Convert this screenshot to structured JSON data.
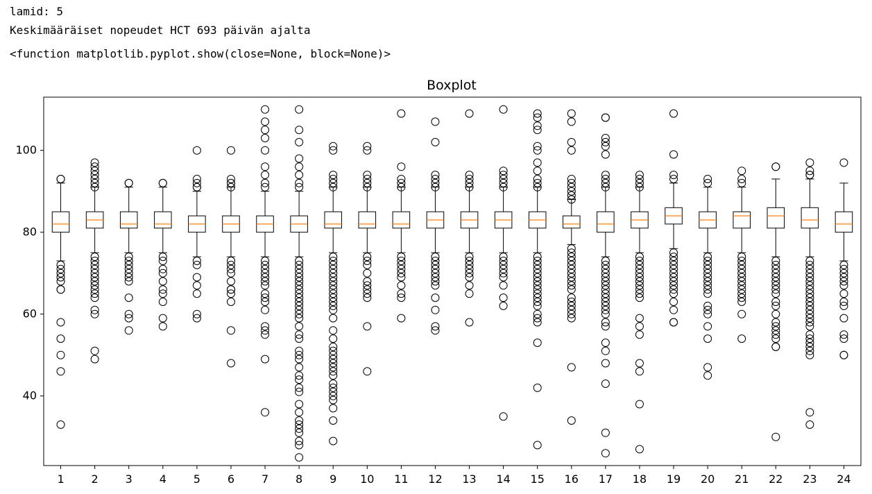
{
  "output": {
    "line1": "lamid: 5",
    "line2": "Keskimääräiset nopeudet HCT 693 päivän ajalta",
    "line3": "<function matplotlib.pyplot.show(close=None, block=None)>"
  },
  "chart_data": {
    "type": "boxplot",
    "title": "Boxplot",
    "xlabel": "",
    "ylabel": "",
    "ylim": [
      23,
      113
    ],
    "yticks": [
      40,
      60,
      80,
      100
    ],
    "categories": [
      "1",
      "2",
      "3",
      "4",
      "5",
      "6",
      "7",
      "8",
      "9",
      "10",
      "11",
      "12",
      "13",
      "14",
      "15",
      "16",
      "17",
      "18",
      "19",
      "20",
      "21",
      "22",
      "23",
      "24"
    ],
    "colors": {
      "box": "#000000",
      "median": "#ff7f0e",
      "flier": "#000000"
    },
    "boxes": [
      {
        "q1": 80,
        "median": 82,
        "q3": 85,
        "whislo": 73,
        "whishi": 92,
        "fliers": [
          93,
          93,
          72,
          71,
          70,
          69,
          68,
          66,
          66,
          58,
          54,
          50,
          46,
          33
        ]
      },
      {
        "q1": 81,
        "median": 83,
        "q3": 85,
        "whislo": 75,
        "whishi": 91,
        "fliers": [
          97,
          96,
          95,
          94,
          93,
          92,
          91,
          74,
          73,
          72,
          71,
          70,
          69,
          68,
          67,
          66,
          65,
          64,
          61,
          60,
          51,
          49
        ]
      },
      {
        "q1": 81,
        "median": 82,
        "q3": 85,
        "whislo": 75,
        "whishi": 91,
        "fliers": [
          92,
          92,
          74,
          73,
          72,
          71,
          70,
          69,
          68,
          64,
          60,
          59,
          56
        ]
      },
      {
        "q1": 81,
        "median": 82,
        "q3": 85,
        "whislo": 75,
        "whishi": 91,
        "fliers": [
          92,
          92,
          74,
          73,
          71,
          70,
          68,
          66,
          65,
          63,
          59,
          57
        ]
      },
      {
        "q1": 80,
        "median": 82,
        "q3": 84,
        "whislo": 74,
        "whishi": 90,
        "fliers": [
          100,
          93,
          92,
          91,
          91,
          73,
          72,
          69,
          67,
          65,
          60,
          59
        ]
      },
      {
        "q1": 80,
        "median": 82,
        "q3": 84,
        "whislo": 74,
        "whishi": 91,
        "fliers": [
          100,
          93,
          92,
          92,
          91,
          73,
          72,
          71,
          70,
          68,
          66,
          66,
          65,
          63,
          56,
          48
        ]
      },
      {
        "q1": 80,
        "median": 82,
        "q3": 84,
        "whislo": 74,
        "whishi": 90,
        "fliers": [
          110,
          107,
          105,
          103,
          100,
          96,
          94,
          92,
          91,
          73,
          72,
          71,
          70,
          69,
          68,
          67,
          65,
          64,
          63,
          61,
          57,
          56,
          55,
          49,
          36
        ]
      },
      {
        "q1": 80,
        "median": 82,
        "q3": 84,
        "whislo": 74,
        "whishi": 90,
        "fliers": [
          110,
          105,
          102,
          98,
          96,
          94,
          92,
          91,
          73,
          72,
          71,
          70,
          69,
          68,
          67,
          66,
          65,
          64,
          63,
          62,
          61,
          60,
          59,
          57,
          55,
          54,
          51,
          50,
          49,
          47,
          45,
          44,
          42,
          41,
          38,
          36,
          34,
          33,
          32,
          31,
          29,
          28,
          25
        ]
      },
      {
        "q1": 81,
        "median": 82,
        "q3": 85,
        "whislo": 75,
        "whishi": 91,
        "fliers": [
          101,
          100,
          94,
          93,
          92,
          91,
          74,
          73,
          72,
          71,
          70,
          69,
          68,
          67,
          66,
          65,
          64,
          63,
          62,
          61,
          59,
          56,
          54,
          52,
          51,
          50,
          49,
          48,
          47,
          46,
          45,
          43,
          42,
          41,
          40,
          39,
          37,
          34,
          29
        ]
      },
      {
        "q1": 81,
        "median": 82,
        "q3": 85,
        "whislo": 75,
        "whishi": 91,
        "fliers": [
          101,
          100,
          94,
          93,
          92,
          91,
          74,
          73,
          72,
          70,
          68,
          67,
          66,
          65,
          64,
          57,
          46
        ]
      },
      {
        "q1": 81,
        "median": 82,
        "q3": 85,
        "whislo": 75,
        "whishi": 91,
        "fliers": [
          109,
          96,
          93,
          92,
          91,
          74,
          73,
          72,
          71,
          70,
          69,
          67,
          65,
          64,
          59
        ]
      },
      {
        "q1": 81,
        "median": 83,
        "q3": 85,
        "whislo": 75,
        "whishi": 91,
        "fliers": [
          107,
          102,
          94,
          93,
          92,
          91,
          74,
          73,
          72,
          71,
          70,
          69,
          68,
          67,
          64,
          61,
          57,
          56
        ]
      },
      {
        "q1": 81,
        "median": 83,
        "q3": 85,
        "whislo": 75,
        "whishi": 91,
        "fliers": [
          109,
          94,
          93,
          92,
          91,
          74,
          73,
          72,
          71,
          70,
          69,
          67,
          65,
          58
        ]
      },
      {
        "q1": 81,
        "median": 83,
        "q3": 85,
        "whislo": 75,
        "whishi": 91,
        "fliers": [
          110,
          95,
          94,
          93,
          92,
          91,
          74,
          73,
          72,
          71,
          70,
          69,
          67,
          64,
          62,
          35
        ]
      },
      {
        "q1": 81,
        "median": 83,
        "q3": 85,
        "whislo": 75,
        "whishi": 91,
        "fliers": [
          109,
          108,
          106,
          105,
          101,
          100,
          97,
          95,
          93,
          92,
          91,
          74,
          73,
          72,
          71,
          70,
          69,
          68,
          67,
          66,
          65,
          64,
          63,
          62,
          60,
          59,
          58,
          53,
          42,
          28
        ]
      },
      {
        "q1": 81,
        "median": 82,
        "q3": 84,
        "whislo": 77,
        "whishi": 88,
        "fliers": [
          109,
          107,
          102,
          100,
          93,
          92,
          91,
          90,
          89,
          88,
          76,
          75,
          74,
          73,
          72,
          71,
          70,
          69,
          68,
          67,
          66,
          64,
          63,
          62,
          61,
          60,
          59,
          47,
          34
        ]
      },
      {
        "q1": 80,
        "median": 82,
        "q3": 85,
        "whislo": 74,
        "whishi": 91,
        "fliers": [
          108,
          108,
          103,
          102,
          101,
          99,
          94,
          93,
          92,
          91,
          73,
          72,
          71,
          70,
          69,
          68,
          67,
          66,
          65,
          64,
          63,
          62,
          61,
          60,
          58,
          57,
          53,
          51,
          48,
          43,
          31,
          26
        ]
      },
      {
        "q1": 81,
        "median": 83,
        "q3": 85,
        "whislo": 75,
        "whishi": 91,
        "fliers": [
          94,
          93,
          92,
          91,
          74,
          73,
          72,
          71,
          70,
          69,
          68,
          67,
          66,
          65,
          64,
          59,
          57,
          55,
          48,
          46,
          38,
          27
        ]
      },
      {
        "q1": 82,
        "median": 84,
        "q3": 86,
        "whislo": 76,
        "whishi": 92,
        "fliers": [
          109,
          99,
          94,
          93,
          75,
          74,
          73,
          72,
          71,
          70,
          69,
          68,
          67,
          66,
          65,
          63,
          61,
          58,
          58
        ]
      },
      {
        "q1": 81,
        "median": 83,
        "q3": 85,
        "whislo": 75,
        "whishi": 91,
        "fliers": [
          93,
          92,
          74,
          73,
          72,
          71,
          70,
          69,
          68,
          67,
          66,
          65,
          62,
          61,
          60,
          57,
          54,
          47,
          45
        ]
      },
      {
        "q1": 81,
        "median": 84,
        "q3": 85,
        "whislo": 75,
        "whishi": 91,
        "fliers": [
          95,
          93,
          92,
          74,
          73,
          72,
          71,
          70,
          69,
          68,
          67,
          66,
          65,
          64,
          63,
          60,
          54
        ]
      },
      {
        "q1": 81,
        "median": 84,
        "q3": 86,
        "whislo": 74,
        "whishi": 93,
        "fliers": [
          96,
          96,
          73,
          72,
          71,
          70,
          69,
          68,
          67,
          66,
          65,
          63,
          62,
          60,
          58,
          57,
          56,
          55,
          54,
          52,
          52,
          30
        ]
      },
      {
        "q1": 81,
        "median": 83,
        "q3": 86,
        "whislo": 74,
        "whishi": 93,
        "fliers": [
          97,
          95,
          94,
          94,
          73,
          72,
          71,
          70,
          69,
          68,
          67,
          66,
          65,
          64,
          63,
          62,
          61,
          60,
          59,
          58,
          57,
          55,
          54,
          53,
          52,
          51,
          50,
          36,
          33
        ]
      },
      {
        "q1": 80,
        "median": 82,
        "q3": 85,
        "whislo": 73,
        "whishi": 92,
        "fliers": [
          97,
          72,
          71,
          70,
          69,
          68,
          67,
          65,
          63,
          62,
          59,
          55,
          54,
          50,
          50
        ]
      }
    ]
  }
}
